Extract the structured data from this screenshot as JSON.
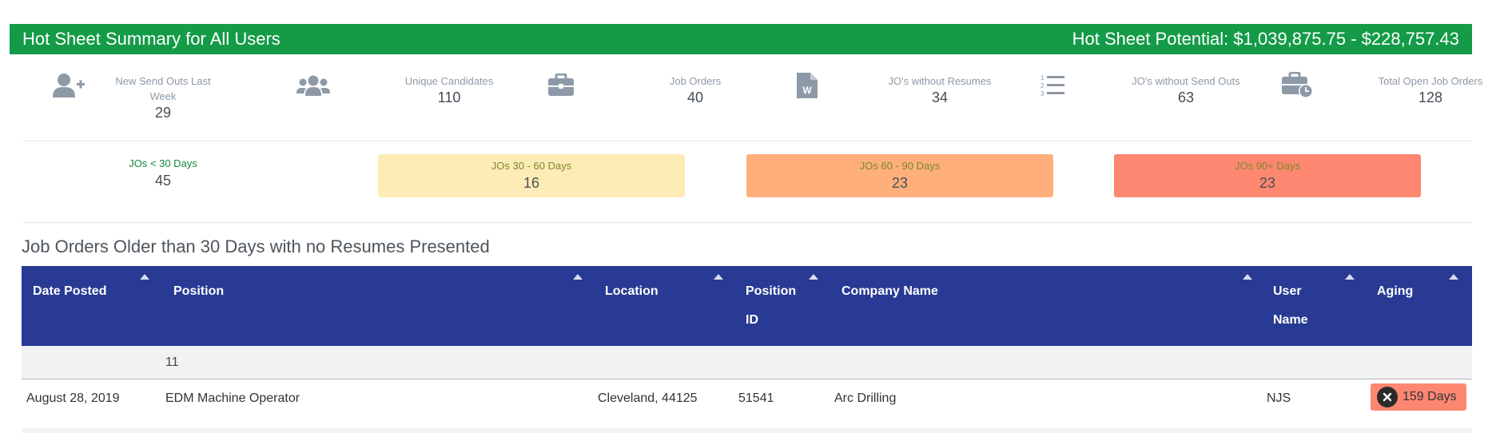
{
  "header": {
    "title": "Hot Sheet Summary for All Users",
    "potential": "Hot Sheet Potential: $1,039,875.75 - $228,757.43"
  },
  "stats": [
    {
      "icon": "user-plus-icon",
      "label": "New Send Outs Last Week",
      "value": "29"
    },
    {
      "icon": "users-icon",
      "label": "Unique Candidates",
      "value": "110"
    },
    {
      "icon": "briefcase-icon",
      "label": "Job Orders",
      "value": "40"
    },
    {
      "icon": "word-document-icon",
      "label": "JO's without Resumes",
      "value": "34"
    },
    {
      "icon": "numbered-list-icon",
      "label": "JO's without Send Outs",
      "value": "63"
    },
    {
      "icon": "briefcase-clock-icon",
      "label": "Total Open Job Orders",
      "value": "128"
    }
  ],
  "buckets": [
    {
      "label": "JOs < 30 Days",
      "value": "45",
      "color": "#ffffff"
    },
    {
      "label": "JOs 30 - 60 Days",
      "value": "16",
      "color": "#feecb6"
    },
    {
      "label": "JOs 60 - 90 Days",
      "value": "23",
      "color": "#ffaf7c"
    },
    {
      "label": "JOs 90+ Days",
      "value": "23",
      "color": "#fd8771"
    }
  ],
  "section_title": "Job Orders Older than 30 Days with no Resumes Presented",
  "table": {
    "columns": [
      {
        "line1": "Date Posted",
        "line2": ""
      },
      {
        "line1": "Position",
        "line2": ""
      },
      {
        "line1": "Location",
        "line2": ""
      },
      {
        "line1": "Position",
        "line2": "ID"
      },
      {
        "line1": "Company Name",
        "line2": ""
      },
      {
        "line1": "User",
        "line2": "Name"
      },
      {
        "line1": "Aging",
        "line2": ""
      }
    ],
    "group_count": "11",
    "rows": [
      {
        "date_posted": "August 28, 2019",
        "position": "EDM Machine Operator",
        "location": "Cleveland, 44125",
        "position_id": "51541",
        "company": "Arc Drilling",
        "user": "NJS",
        "aging": "159 Days"
      }
    ]
  },
  "colors": {
    "header_green": "#149b47",
    "table_header_blue": "#283a93",
    "icon_gray": "#8d99a6",
    "aging_red": "#fd8771"
  }
}
